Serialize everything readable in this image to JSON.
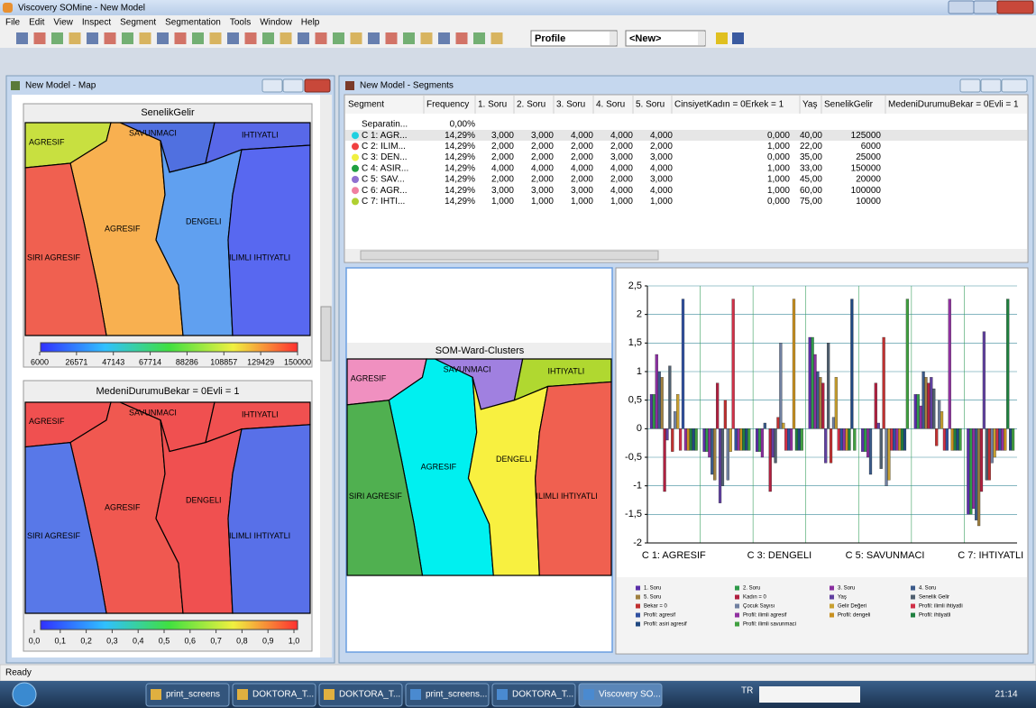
{
  "window": {
    "title": "Viscovery SOMine - New Model"
  },
  "menu": [
    "File",
    "Edit",
    "View",
    "Inspect",
    "Segment",
    "Segmentation",
    "Tools",
    "Window",
    "Help"
  ],
  "toolbar": {
    "profile": "Profile",
    "new": "<New>"
  },
  "map_window": {
    "title": "New Model - Map",
    "maps": [
      {
        "title": "SenelikGelir",
        "labels": [
          "AGRESIF",
          "SAVUNMACI",
          "IHTIYATLI",
          "AGRESIF",
          "DENGELI",
          "SIRI AGRESIF",
          "ILIMLI IHTIYATLI"
        ],
        "scale": [
          "6000",
          "26571",
          "47143",
          "67714",
          "88286",
          "108857",
          "129429",
          "150000"
        ]
      },
      {
        "title": "MedeniDurumuBekar = 0Evli = 1",
        "labels": [
          "AGRESIF",
          "SAVUNMACI",
          "IHTIYATLI",
          "AGRESIF",
          "DENGELI",
          "SIRI AGRESIF",
          "ILIMLI IHTIYATLI"
        ],
        "scale": [
          "0,0",
          "0,1",
          "0,2",
          "0,3",
          "0,4",
          "0,5",
          "0,6",
          "0,7",
          "0,8",
          "0,9",
          "1,0"
        ]
      }
    ]
  },
  "segments_window": {
    "title": "New Model - Segments",
    "table": {
      "columns": [
        "Segment",
        "Frequency",
        "1. Soru",
        "2. Soru",
        "3. Soru",
        "4. Soru",
        "5. Soru",
        "CinsiyetKadın = 0Erkek = 1",
        "Yaş",
        "SenelikGelir",
        "MedeniDurumuBekar = 0Evli = 1"
      ],
      "rows": [
        [
          "Separatin...",
          "0,00%"
        ],
        [
          "C 1: AGR...",
          "14,29%",
          "3,000",
          "3,000",
          "4,000",
          "4,000",
          "4,000",
          "0,000",
          "40,00",
          "125000"
        ],
        [
          "C 2: ILIM...",
          "14,29%",
          "2,000",
          "2,000",
          "2,000",
          "2,000",
          "2,000",
          "1,000",
          "22,00",
          "6000"
        ],
        [
          "C 3: DEN...",
          "14,29%",
          "2,000",
          "2,000",
          "2,000",
          "3,000",
          "3,000",
          "0,000",
          "35,00",
          "25000"
        ],
        [
          "C 4: ASIR...",
          "14,29%",
          "4,000",
          "4,000",
          "4,000",
          "4,000",
          "4,000",
          "1,000",
          "33,00",
          "150000"
        ],
        [
          "C 5: SAV...",
          "14,29%",
          "2,000",
          "2,000",
          "2,000",
          "2,000",
          "3,000",
          "1,000",
          "45,00",
          "20000"
        ],
        [
          "C 6: AGR...",
          "14,29%",
          "3,000",
          "3,000",
          "3,000",
          "4,000",
          "4,000",
          "1,000",
          "60,00",
          "100000"
        ],
        [
          "C 7: IHTI...",
          "14,29%",
          "1,000",
          "1,000",
          "1,000",
          "1,000",
          "1,000",
          "0,000",
          "75,00",
          "10000"
        ]
      ]
    },
    "clusters": {
      "title": "SOM-Ward-Clusters",
      "labels": [
        "AGRESIF",
        "SAVUNMACI",
        "IHTIYATLI",
        "AGRESIF",
        "DENGELI",
        "SIRI AGRESIF",
        "ILIMLI IHTIYATLI"
      ]
    }
  },
  "chart_data": {
    "type": "bar",
    "categories": [
      "C 1: AGRESIF",
      null,
      "C 3: DENGELI",
      null,
      "C 5: SAVUNMACI",
      null,
      "C 7: IHTIYATLI"
    ],
    "ylim": [
      -2,
      2.5
    ],
    "yticks": [
      -2,
      {
        "value": -1.5,
        "label": "-1,5"
      },
      -1,
      {
        "value": -0.5,
        "label": "-0,5"
      },
      0,
      {
        "value": 0.5,
        "label": "0,5"
      },
      1,
      {
        "value": 1.5,
        "label": "1,5"
      },
      2,
      {
        "value": 2.5,
        "label": "2,5"
      }
    ],
    "grid": true,
    "legend": "bottom",
    "series": [
      {
        "name": "1. Soru",
        "color": "#5a2fa8",
        "values": [
          0.6,
          -0.4,
          -0.4,
          1.6,
          -0.4,
          0.6,
          -1.5
        ]
      },
      {
        "name": "2. Soru",
        "color": "#2f9a4a",
        "values": [
          0.6,
          -0.4,
          -0.4,
          1.6,
          -0.4,
          0.6,
          -1.5
        ]
      },
      {
        "name": "3. Soru",
        "color": "#8a2fa0",
        "values": [
          1.3,
          -0.5,
          -0.5,
          1.3,
          -0.5,
          0.4,
          -1.4
        ]
      },
      {
        "name": "4. Soru",
        "color": "#3a5a8a",
        "values": [
          1.0,
          -0.8,
          0.1,
          1.0,
          -0.8,
          1.0,
          -1.6
        ]
      },
      {
        "name": "5. Soru",
        "color": "#a08040",
        "values": [
          0.9,
          -0.9,
          0.0,
          0.9,
          0.0,
          0.9,
          -1.7
        ]
      },
      {
        "name": "Kadın = 0",
        "color": "#b02040",
        "values": [
          -1.1,
          0.8,
          -1.1,
          0.8,
          0.8,
          0.8,
          -1.1
        ]
      },
      {
        "name": "Yaş",
        "color": "#6040a0",
        "values": [
          -0.2,
          -1.3,
          -0.5,
          -0.6,
          0.1,
          0.9,
          1.7
        ]
      },
      {
        "name": "Senelik Gelir",
        "color": "#506070",
        "values": [
          1.1,
          -1.0,
          -0.6,
          1.5,
          -0.7,
          0.7,
          -0.9
        ]
      },
      {
        "name": "Bekar = 0",
        "color": "#c03030",
        "values": [
          -0.4,
          0.5,
          0.2,
          -0.6,
          1.6,
          -0.3,
          -0.9
        ]
      },
      {
        "name": "Çocuk Sayısı",
        "color": "#7080a0",
        "values": [
          0.3,
          -0.9,
          1.5,
          0.2,
          -1.0,
          0.5,
          -0.6
        ]
      },
      {
        "name": "Gelir Değeri",
        "color": "#c8a030",
        "values": [
          0.6,
          -0.4,
          0.1,
          0.9,
          -0.9,
          0.3,
          -0.5
        ]
      },
      {
        "name": "Profil: ilimli ihtiyatli",
        "color": "#d03048",
        "values": [
          -0.38,
          2.27,
          -0.38,
          -0.38,
          -0.38,
          -0.38,
          -0.38
        ]
      },
      {
        "name": "Profil: agresif",
        "color": "#3050a0",
        "values": [
          2.27,
          -0.38,
          -0.38,
          -0.38,
          -0.38,
          -0.38,
          -0.38
        ]
      },
      {
        "name": "Profil: ilimli agresif",
        "color": "#9030a0",
        "values": [
          -0.38,
          -0.38,
          -0.38,
          -0.38,
          -0.38,
          2.27,
          -0.38
        ]
      },
      {
        "name": "Profil: dengeli",
        "color": "#c89020",
        "values": [
          -0.38,
          -0.38,
          2.27,
          -0.38,
          -0.38,
          -0.38,
          -0.38
        ]
      },
      {
        "name": "Profil: ihtiyatli",
        "color": "#208040",
        "values": [
          -0.38,
          -0.38,
          -0.38,
          -0.38,
          -0.38,
          -0.38,
          2.27
        ]
      },
      {
        "name": "Profil: asiri agresif",
        "color": "#204880",
        "values": [
          -0.38,
          -0.38,
          -0.38,
          2.27,
          -0.38,
          -0.38,
          -0.38
        ]
      },
      {
        "name": "Profil: ilimli savunmaci",
        "color": "#40a040",
        "values": [
          -0.38,
          -0.38,
          -0.38,
          -0.38,
          2.27,
          -0.38,
          -0.38
        ]
      }
    ]
  },
  "status": "Ready",
  "taskbar": {
    "items": [
      "print_screens",
      "DOKTORA_T...",
      "DOKTORA_T...",
      "print_screens...",
      "DOKTORA_T...",
      "Viscovery SO..."
    ],
    "lang": "TR",
    "time": "21:14"
  }
}
